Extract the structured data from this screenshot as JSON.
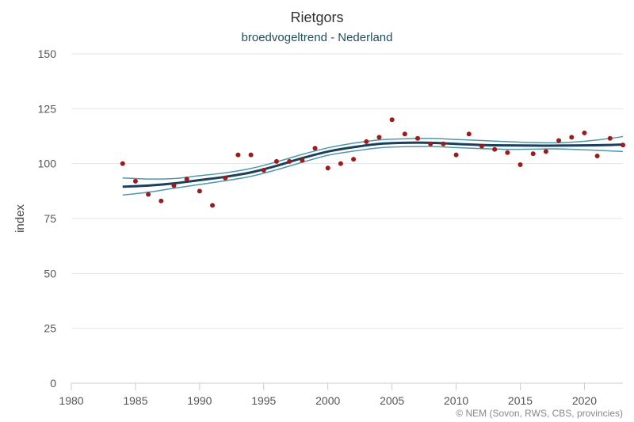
{
  "chart_data": {
    "type": "line",
    "title": "Rietgors",
    "subtitle": "broedvogeltrend - Nederland",
    "xlabel": "",
    "ylabel": "index",
    "credit": "© NEM (Sovon, RWS, CBS, provincies)",
    "xlim": [
      1980,
      2023
    ],
    "ylim": [
      0,
      150
    ],
    "x_ticks": [
      1980,
      1985,
      1990,
      1995,
      2000,
      2005,
      2010,
      2015,
      2020
    ],
    "y_ticks": [
      0,
      25,
      50,
      75,
      100,
      125,
      150
    ],
    "grid": true,
    "legend": "none",
    "colors": {
      "trend": "#1c3f5b",
      "ci": "#4f98a8",
      "points": "#9e1b1b",
      "grid": "#e6e6e6",
      "axis": "#cccccc"
    },
    "series": [
      {
        "role": "index",
        "x": [
          1984,
          1985,
          1986,
          1987,
          1988,
          1989,
          1990,
          1991,
          1992,
          1993,
          1994,
          1995,
          1996,
          1997,
          1998,
          1999,
          2000,
          2001,
          2002,
          2003,
          2004,
          2005,
          2006,
          2007,
          2008,
          2009,
          2010,
          2011,
          2012,
          2013,
          2014,
          2015,
          2016,
          2017,
          2018,
          2019,
          2020,
          2021,
          2022,
          2023
        ],
        "values": [
          100,
          92,
          86,
          83,
          90,
          93,
          87.5,
          81,
          93.5,
          104,
          104,
          97,
          101,
          101,
          101.5,
          107,
          98,
          100,
          102,
          110,
          112,
          120,
          113.5,
          111.5,
          109,
          109,
          104,
          113.5,
          108,
          106.5,
          105,
          99.5,
          104.5,
          105.5,
          110.5,
          112,
          114,
          103.5,
          111.5,
          108.5
        ]
      },
      {
        "role": "trend",
        "x": [
          1984,
          1986,
          1988,
          1990,
          1992,
          1994,
          1996,
          1998,
          2000,
          2002,
          2004,
          2006,
          2008,
          2010,
          2012,
          2014,
          2016,
          2018,
          2020,
          2022,
          2023
        ],
        "values": [
          89.5,
          90,
          91,
          92.5,
          94,
          96,
          99,
          102.5,
          105.5,
          107.5,
          109,
          109.5,
          109.5,
          109,
          108.5,
          108.3,
          108.2,
          108.2,
          108.3,
          108.5,
          108.7
        ]
      },
      {
        "role": "ci-upper",
        "x": [
          1984,
          1986,
          1988,
          1990,
          1992,
          1994,
          1996,
          1998,
          2000,
          2002,
          2004,
          2006,
          2008,
          2010,
          2012,
          2014,
          2016,
          2018,
          2020,
          2022,
          2023
        ],
        "values": [
          93.5,
          93,
          93.2,
          94.5,
          95.8,
          97.8,
          100.8,
          104.2,
          107.2,
          109.3,
          110.8,
          111.3,
          111.5,
          111,
          110.5,
          110,
          109.6,
          109.5,
          110.2,
          111.5,
          112.3
        ]
      },
      {
        "role": "ci-lower",
        "x": [
          1984,
          1986,
          1988,
          1990,
          1992,
          1994,
          1996,
          1998,
          2000,
          2002,
          2004,
          2006,
          2008,
          2010,
          2012,
          2014,
          2016,
          2018,
          2020,
          2022,
          2023
        ],
        "values": [
          85.7,
          87,
          88.8,
          90.5,
          92.2,
          94.2,
          97.2,
          100.6,
          103.8,
          105.7,
          107.2,
          107.7,
          107.8,
          107.3,
          106.8,
          106.5,
          106.6,
          106.7,
          106.3,
          105.8,
          105.5
        ]
      }
    ]
  }
}
